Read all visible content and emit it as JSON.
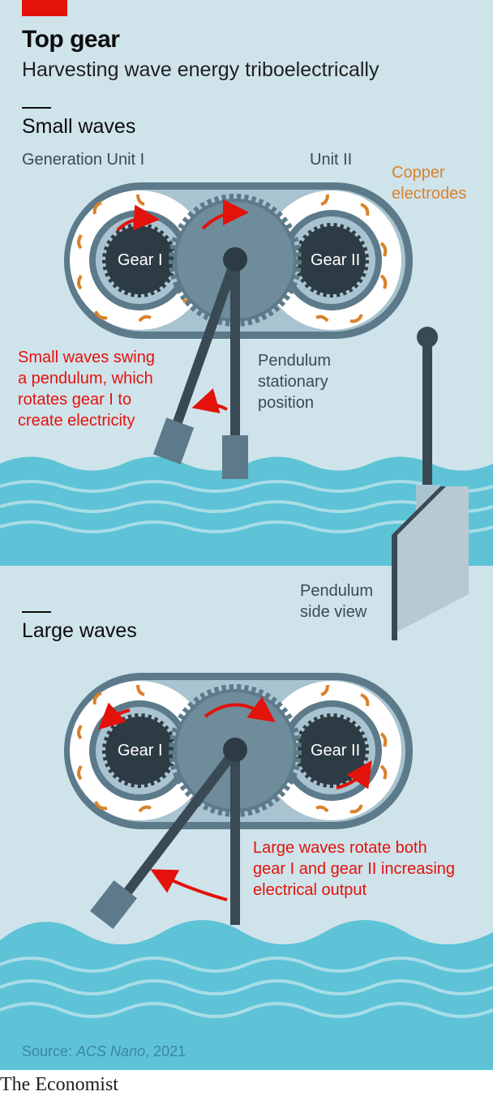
{
  "header": {
    "title": "Top gear",
    "subtitle": "Harvesting wave energy triboelectrically"
  },
  "small_waves": {
    "heading": "Small waves",
    "unit1_label": "Generation Unit I",
    "unit2_label": "Unit II",
    "copper_label_line1": "Copper",
    "copper_label_line2": "electrodes",
    "gear1": "Gear I",
    "gear2": "Gear II",
    "annotation_lines": [
      "Small waves swing",
      "a pendulum, which",
      "rotates gear I to",
      "create electricity"
    ],
    "pendulum_lines": [
      "Pendulum",
      "stationary",
      "position"
    ],
    "side_view_lines": [
      "Pendulum",
      "side view"
    ]
  },
  "large_waves": {
    "heading": "Large waves",
    "gear1": "Gear I",
    "gear2": "Gear II",
    "annotation_lines": [
      "Large waves rotate both",
      "gear I and gear II increasing",
      "electrical output"
    ]
  },
  "footer": {
    "source_prefix": "Source: ",
    "source_journal": "ACS Nano",
    "source_year": ", 2021",
    "brand": "The Economist"
  },
  "colors": {
    "accent_red": "#e3120b",
    "copper": "#d9822b",
    "water": "#5ec3d6",
    "background": "#cfe3eb"
  }
}
